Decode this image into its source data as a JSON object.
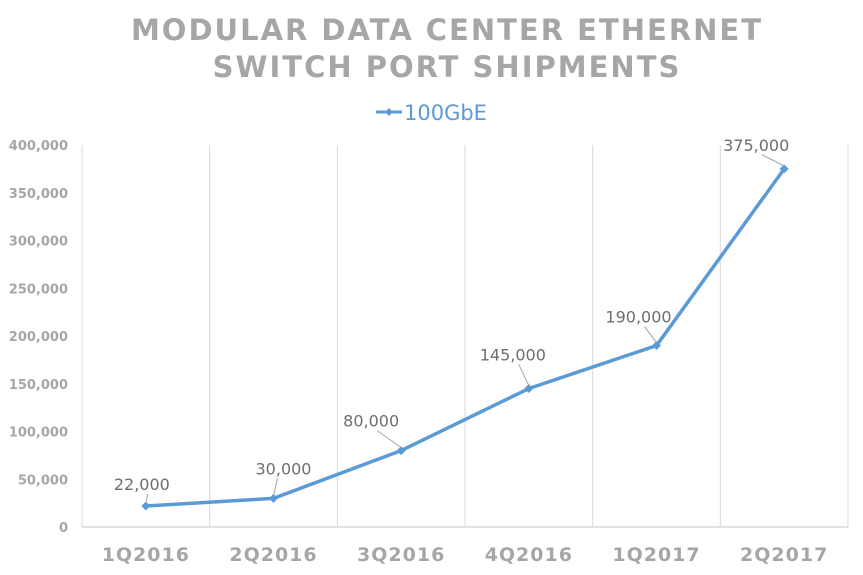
{
  "chart_data": {
    "type": "line",
    "title_lines": [
      "MODULAR DATA CENTER ETHERNET",
      "SWITCH PORT SHIPMENTS"
    ],
    "categories": [
      "1Q2016",
      "2Q2016",
      "3Q2016",
      "4Q2016",
      "1Q2017",
      "2Q2017"
    ],
    "series": [
      {
        "name": "100GbE",
        "values": [
          22000,
          30000,
          80000,
          145000,
          190000,
          375000
        ],
        "color": "#5b9bd5"
      }
    ],
    "data_labels": [
      "22,000",
      "30,000",
      "80,000",
      "145,000",
      "190,000",
      "375,000"
    ],
    "yticks": [
      0,
      50000,
      100000,
      150000,
      200000,
      250000,
      300000,
      350000,
      400000
    ],
    "ytick_labels": [
      "0",
      "50,000",
      "100,000",
      "150,000",
      "200,000",
      "250,000",
      "300,000",
      "350,000",
      "400,000"
    ],
    "ylim": [
      0,
      400000
    ],
    "xlabel": "",
    "ylabel": "",
    "legend_position": "top",
    "grid": "vertical"
  }
}
